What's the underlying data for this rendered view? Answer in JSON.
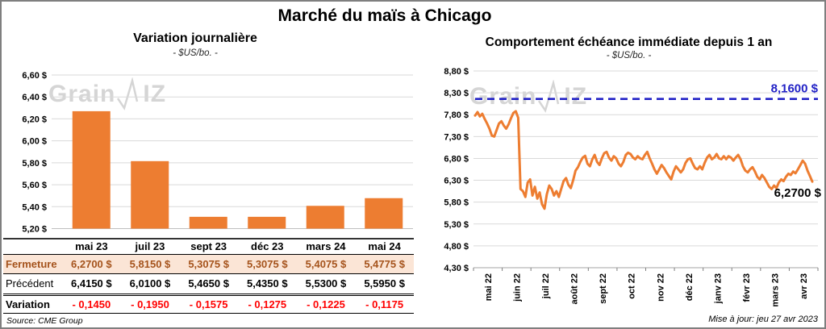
{
  "page": {
    "title": "Marché du maïs à Chicago",
    "source": "Source: CME Group",
    "updated": "Mise à jour: jeu 27 avr 2023",
    "watermark": {
      "part1": "Grain",
      "part2": "IZ"
    }
  },
  "table": {
    "columns": [
      "mai 23",
      "juil 23",
      "sept 23",
      "déc 23",
      "mars 24",
      "mai 24"
    ],
    "rows": [
      {
        "label": "Fermeture",
        "values": [
          "6,2700 $",
          "5,8150 $",
          "5,3075 $",
          "5,3075 $",
          "5,4075 $",
          "5,4775 $"
        ]
      },
      {
        "label": "Précédent",
        "values": [
          "6,4150 $",
          "6,0100 $",
          "5,4650 $",
          "5,4350 $",
          "5,5300 $",
          "5,5950 $"
        ]
      },
      {
        "label": "Variation",
        "values": [
          "- 0,1450",
          "- 0,1950",
          "- 0,1575",
          "- 0,1275",
          "- 0,1225",
          "- 0,1175"
        ]
      }
    ]
  },
  "chart_data": [
    {
      "type": "bar",
      "title": "Variation journalière",
      "subtitle": "- $US/bo. -",
      "categories": [
        "mai 23",
        "juil 23",
        "sept 23",
        "déc 23",
        "mars 24",
        "mai 24"
      ],
      "values": [
        6.27,
        5.815,
        5.3075,
        5.3075,
        5.4075,
        5.4775
      ],
      "ylim": [
        5.2,
        6.6
      ],
      "ytick_step": 0.2,
      "ytick_labels": [
        "6,60 $",
        "6,40 $",
        "6,20 $",
        "6,00 $",
        "5,80 $",
        "5,60 $",
        "5,40 $",
        "5,20 $"
      ],
      "color": "#ED7D31",
      "grid": true
    },
    {
      "type": "line",
      "title": "Comportement échéance immédiate depuis 1 an",
      "subtitle": "- $US/bo. -",
      "x_labels": [
        "mai 22",
        "juin 22",
        "juil 22",
        "août 22",
        "sept 22",
        "oct 22",
        "nov 22",
        "déc 22",
        "janv 23",
        "févr 23",
        "mars 23",
        "avr 23"
      ],
      "ylim": [
        4.3,
        8.8
      ],
      "ytick_step": 0.5,
      "ytick_labels": [
        "8,80 $",
        "8,30 $",
        "7,80 $",
        "7,30 $",
        "6,80 $",
        "6,30 $",
        "5,80 $",
        "5,30 $",
        "4,80 $",
        "4,30 $"
      ],
      "color": "#ED7D31",
      "grid": true,
      "reference_line": {
        "value": 8.16,
        "label": "8,1600 $",
        "color": "#2222C6"
      },
      "end_label": "6,2700 $",
      "series": [
        {
          "name": "échéance immédiate",
          "values": [
            7.78,
            7.86,
            7.76,
            7.82,
            7.7,
            7.6,
            7.48,
            7.32,
            7.3,
            7.45,
            7.6,
            7.65,
            7.55,
            7.48,
            7.58,
            7.72,
            7.84,
            7.88,
            7.73,
            6.1,
            6.05,
            5.92,
            6.25,
            6.32,
            5.95,
            6.15,
            5.88,
            6.02,
            5.75,
            5.65,
            5.98,
            6.18,
            6.1,
            5.95,
            6.05,
            5.92,
            6.1,
            6.28,
            6.35,
            6.2,
            6.12,
            6.3,
            6.52,
            6.6,
            6.72,
            6.82,
            6.86,
            6.68,
            6.62,
            6.78,
            6.88,
            6.72,
            6.65,
            6.8,
            6.92,
            6.95,
            6.82,
            6.75,
            6.85,
            6.8,
            6.68,
            6.62,
            6.72,
            6.88,
            6.93,
            6.9,
            6.82,
            6.78,
            6.85,
            6.8,
            6.78,
            6.88,
            6.95,
            6.8,
            6.68,
            6.55,
            6.45,
            6.55,
            6.65,
            6.58,
            6.48,
            6.4,
            6.32,
            6.5,
            6.62,
            6.55,
            6.48,
            6.55,
            6.7,
            6.78,
            6.8,
            6.68,
            6.58,
            6.55,
            6.62,
            6.55,
            6.7,
            6.82,
            6.88,
            6.78,
            6.82,
            6.9,
            6.8,
            6.78,
            6.85,
            6.78,
            6.85,
            6.82,
            6.75,
            6.82,
            6.88,
            6.78,
            6.62,
            6.52,
            6.48,
            6.55,
            6.6,
            6.5,
            6.38,
            6.32,
            6.42,
            6.35,
            6.25,
            6.15,
            6.1,
            6.18,
            6.12,
            6.25,
            6.32,
            6.28,
            6.38,
            6.45,
            6.42,
            6.5,
            6.46,
            6.55,
            6.65,
            6.75,
            6.68,
            6.52,
            6.4,
            6.27
          ]
        }
      ]
    }
  ]
}
